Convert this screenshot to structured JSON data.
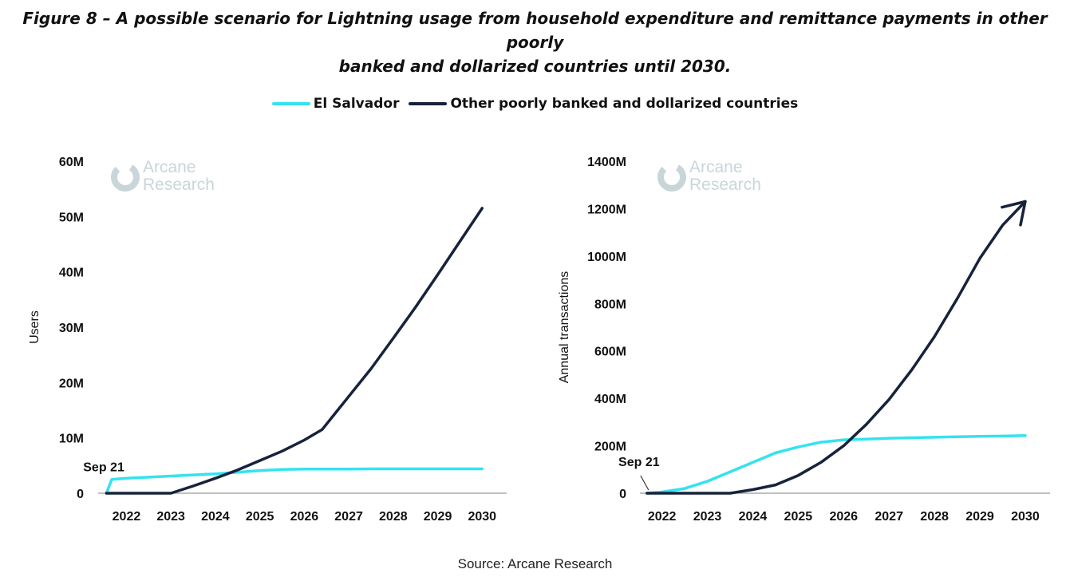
{
  "title": {
    "line1": "Figure 8 – A possible scenario for Lightning usage from household expenditure and remittance payments in other poorly",
    "line2": "banked and dollarized countries until 2030."
  },
  "legend": {
    "items": [
      {
        "label": "El Salvador",
        "color": "#34e3ee"
      },
      {
        "label": "Other poorly banked and dollarized countries",
        "color": "#17223b"
      }
    ]
  },
  "watermark": {
    "line1": "Arcane",
    "line2": "Research",
    "color": "#c9d6d9"
  },
  "source": "Source: Arcane Research",
  "chart_data": [
    {
      "type": "line",
      "title": "",
      "xlabel": "",
      "ylabel": "Users",
      "xlim": [
        2021.4,
        2030.3
      ],
      "ylim": [
        0,
        60
      ],
      "x_ticks": [
        "2022",
        "2023",
        "2024",
        "2025",
        "2026",
        "2027",
        "2028",
        "2029",
        "2030"
      ],
      "y_ticks": [
        {
          "value": 0,
          "label": "0"
        },
        {
          "value": 10,
          "label": "10M"
        },
        {
          "value": 20,
          "label": "20M"
        },
        {
          "value": 30,
          "label": "30M"
        },
        {
          "value": 40,
          "label": "40M"
        },
        {
          "value": 50,
          "label": "50M"
        },
        {
          "value": 60,
          "label": "60M"
        }
      ],
      "annotation": {
        "text": "Sep 21",
        "x": 2021.67,
        "y": 2.5
      },
      "series": [
        {
          "name": "El Salvador",
          "color": "#34e3ee",
          "x": [
            2021.55,
            2021.67,
            2022.0,
            2022.5,
            2023.0,
            2023.5,
            2024.0,
            2024.5,
            2025.0,
            2025.5,
            2026.0,
            2026.5,
            2027.0,
            2027.5,
            2028.0,
            2028.5,
            2029.0,
            2029.5,
            2030.0
          ],
          "values": [
            0,
            2.5,
            2.7,
            2.9,
            3.1,
            3.3,
            3.5,
            3.8,
            4.1,
            4.3,
            4.35,
            4.35,
            4.35,
            4.4,
            4.4,
            4.4,
            4.4,
            4.4,
            4.4
          ]
        },
        {
          "name": "Other poorly banked and dollarized countries",
          "color": "#17223b",
          "x": [
            2021.55,
            2022.0,
            2023.0,
            2023.5,
            2024.0,
            2024.5,
            2025.0,
            2025.5,
            2026.0,
            2026.4,
            2026.7,
            2027.0,
            2027.5,
            2028.0,
            2028.5,
            2029.0,
            2029.5,
            2030.0
          ],
          "values": [
            0,
            0,
            0,
            1.3,
            2.7,
            4.2,
            5.9,
            7.6,
            9.6,
            11.5,
            14.5,
            17.5,
            22.5,
            28.0,
            33.6,
            39.5,
            45.5,
            51.5
          ]
        }
      ]
    },
    {
      "type": "line",
      "title": "",
      "xlabel": "",
      "ylabel": "Annual transactions",
      "xlim": [
        2021.55,
        2030.3
      ],
      "ylim": [
        0,
        1400
      ],
      "x_ticks": [
        "2022",
        "2023",
        "2024",
        "2025",
        "2026",
        "2027",
        "2028",
        "2029",
        "2030"
      ],
      "y_ticks": [
        {
          "value": 0,
          "label": "0"
        },
        {
          "value": 200,
          "label": "200M"
        },
        {
          "value": 400,
          "label": "400M"
        },
        {
          "value": 600,
          "label": "600M"
        },
        {
          "value": 800,
          "label": "800M"
        },
        {
          "value": 1000,
          "label": "1000M"
        },
        {
          "value": 1200,
          "label": "1200M"
        },
        {
          "value": 1400,
          "label": "1400M"
        }
      ],
      "annotation": {
        "text": "Sep 21",
        "x": 2021.67,
        "y": 0
      },
      "series": [
        {
          "name": "El Salvador",
          "color": "#34e3ee",
          "x": [
            2021.67,
            2022.0,
            2022.5,
            2023.0,
            2023.5,
            2024.0,
            2024.5,
            2025.0,
            2025.5,
            2026.0,
            2026.5,
            2027.0,
            2027.5,
            2028.0,
            2028.5,
            2029.0,
            2029.5,
            2030.0
          ],
          "values": [
            0,
            5,
            20,
            50,
            90,
            130,
            170,
            195,
            215,
            225,
            228,
            232,
            234,
            236,
            238,
            240,
            241,
            243
          ]
        },
        {
          "name": "Other poorly banked and dollarized countries",
          "color": "#17223b",
          "x": [
            2021.67,
            2022.5,
            2023.0,
            2023.5,
            2024.0,
            2024.5,
            2025.0,
            2025.5,
            2026.0,
            2026.5,
            2027.0,
            2027.5,
            2028.0,
            2028.5,
            2029.0,
            2029.5,
            2030.0
          ],
          "values": [
            0,
            0,
            0,
            0,
            15,
            35,
            75,
            130,
            200,
            290,
            395,
            520,
            660,
            820,
            990,
            1130,
            1230
          ]
        }
      ]
    }
  ]
}
